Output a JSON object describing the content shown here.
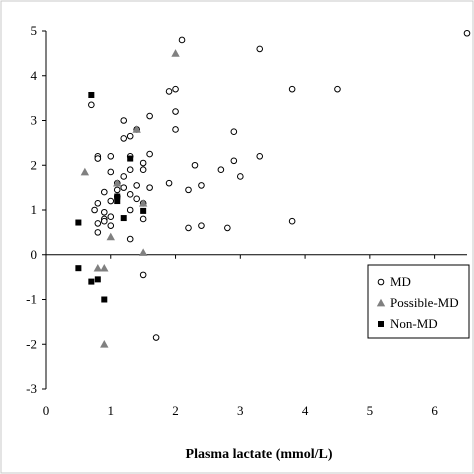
{
  "chart_data": {
    "type": "scatter",
    "title": "",
    "xlabel": "Plasma lactate (mmol/L)",
    "ylabel": "",
    "xlim": [
      0,
      6.5
    ],
    "ylim": [
      -3,
      5
    ],
    "xticks": [
      "0",
      "1",
      "2",
      "3",
      "4",
      "5",
      "6"
    ],
    "yticks": [
      "-3",
      "-2",
      "-1",
      "0",
      "1",
      "2",
      "3",
      "4",
      "5"
    ],
    "grid": false,
    "legend_position": "bottom-right",
    "series": [
      {
        "name": "MD",
        "marker": "open-circle",
        "color": "#000000",
        "points": [
          [
            0.7,
            3.35
          ],
          [
            0.8,
            2.2
          ],
          [
            0.8,
            2.15
          ],
          [
            0.8,
            1.15
          ],
          [
            0.75,
            1.0
          ],
          [
            0.8,
            0.7
          ],
          [
            0.8,
            0.5
          ],
          [
            0.9,
            1.4
          ],
          [
            0.9,
            0.95
          ],
          [
            0.9,
            0.8
          ],
          [
            0.9,
            0.75
          ],
          [
            1.0,
            2.2
          ],
          [
            1.0,
            1.85
          ],
          [
            1.0,
            1.2
          ],
          [
            1.0,
            0.85
          ],
          [
            1.0,
            0.65
          ],
          [
            1.1,
            1.6
          ],
          [
            1.1,
            1.45
          ],
          [
            1.1,
            1.3
          ],
          [
            1.2,
            3.0
          ],
          [
            1.2,
            2.6
          ],
          [
            1.2,
            1.75
          ],
          [
            1.2,
            1.5
          ],
          [
            1.3,
            2.65
          ],
          [
            1.3,
            2.2
          ],
          [
            1.3,
            1.9
          ],
          [
            1.3,
            1.35
          ],
          [
            1.3,
            1.0
          ],
          [
            1.3,
            0.35
          ],
          [
            1.4,
            2.8
          ],
          [
            1.4,
            1.55
          ],
          [
            1.4,
            1.25
          ],
          [
            1.5,
            2.05
          ],
          [
            1.5,
            1.9
          ],
          [
            1.5,
            1.15
          ],
          [
            1.5,
            0.8
          ],
          [
            1.5,
            -0.45
          ],
          [
            1.6,
            3.1
          ],
          [
            1.6,
            2.25
          ],
          [
            1.6,
            1.5
          ],
          [
            1.7,
            -1.85
          ],
          [
            1.9,
            3.65
          ],
          [
            1.9,
            1.6
          ],
          [
            2.0,
            3.7
          ],
          [
            2.0,
            3.2
          ],
          [
            2.0,
            2.8
          ],
          [
            2.1,
            4.8
          ],
          [
            2.2,
            1.45
          ],
          [
            2.2,
            0.6
          ],
          [
            2.3,
            2.0
          ],
          [
            2.4,
            1.55
          ],
          [
            2.4,
            0.65
          ],
          [
            2.7,
            1.9
          ],
          [
            2.8,
            0.6
          ],
          [
            2.9,
            2.75
          ],
          [
            2.9,
            2.1
          ],
          [
            3.0,
            1.75
          ],
          [
            3.3,
            4.6
          ],
          [
            3.3,
            2.2
          ],
          [
            3.8,
            3.7
          ],
          [
            3.8,
            0.75
          ],
          [
            4.5,
            3.7
          ],
          [
            6.5,
            4.95
          ]
        ]
      },
      {
        "name": "Possible-MD",
        "marker": "filled-triangle",
        "color": "#808080",
        "points": [
          [
            0.6,
            1.85
          ],
          [
            0.8,
            -0.3
          ],
          [
            0.9,
            -0.3
          ],
          [
            0.9,
            -2.0
          ],
          [
            1.0,
            0.4
          ],
          [
            1.1,
            1.6
          ],
          [
            1.4,
            2.8
          ],
          [
            1.5,
            1.15
          ],
          [
            1.5,
            0.05
          ],
          [
            2.0,
            4.5
          ]
        ]
      },
      {
        "name": "Non-MD",
        "marker": "filled-square",
        "color": "#000000",
        "points": [
          [
            0.5,
            0.72
          ],
          [
            0.5,
            -0.3
          ],
          [
            0.7,
            3.57
          ],
          [
            0.7,
            -0.6
          ],
          [
            0.8,
            -0.55
          ],
          [
            0.9,
            -1.0
          ],
          [
            1.1,
            1.3
          ],
          [
            1.1,
            1.2
          ],
          [
            1.2,
            0.82
          ],
          [
            1.3,
            2.15
          ],
          [
            1.5,
            0.98
          ]
        ]
      }
    ]
  }
}
